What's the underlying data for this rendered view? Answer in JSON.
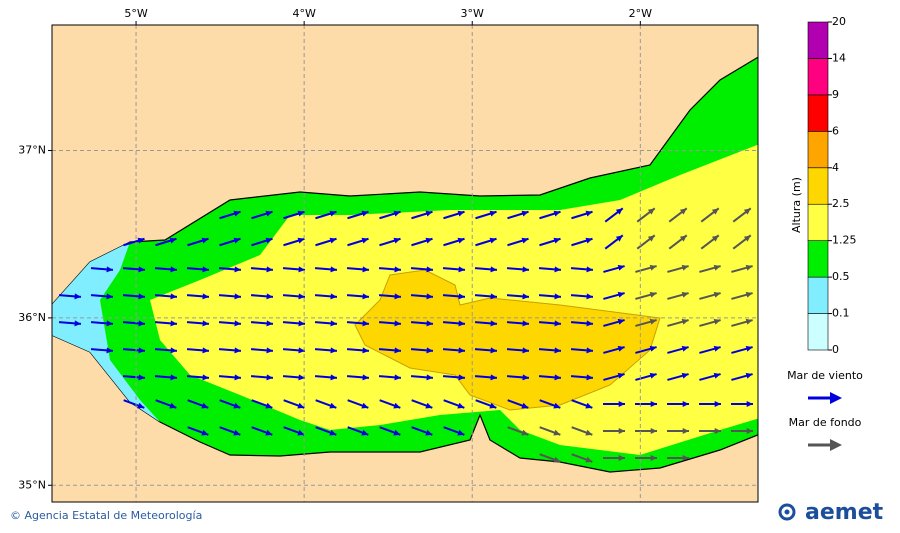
{
  "map": {
    "xlim": [
      -5.5,
      -1.3
    ],
    "ylim": [
      34.9,
      37.75
    ],
    "xticks": [
      {
        "value": -5,
        "label": "5°W"
      },
      {
        "value": -4,
        "label": "4°W"
      },
      {
        "value": -3,
        "label": "3°W"
      },
      {
        "value": -2,
        "label": "2°W"
      }
    ],
    "yticks": [
      {
        "value": 37,
        "label": "37°N"
      },
      {
        "value": 36,
        "label": "36°N"
      },
      {
        "value": 35,
        "label": "35°N"
      }
    ],
    "grid": true
  },
  "colorbar": {
    "title": "Altura (m)",
    "levels": [
      0,
      0.1,
      0.5,
      1.25,
      2.5,
      4,
      6,
      9,
      14,
      20
    ],
    "colors": [
      "#ccffff",
      "#80eeff",
      "#00ee00",
      "#ffff44",
      "#ffd700",
      "#ffa500",
      "#ff0000",
      "#ff0080",
      "#b000b0"
    ]
  },
  "legend": [
    {
      "label": "Mar de viento",
      "color": "#0000dd"
    },
    {
      "label": "Mar de fondo",
      "color": "#555555"
    }
  ],
  "footer": {
    "credit": "© Agencia Estatal de Meteorología",
    "logo": "aemet"
  }
}
